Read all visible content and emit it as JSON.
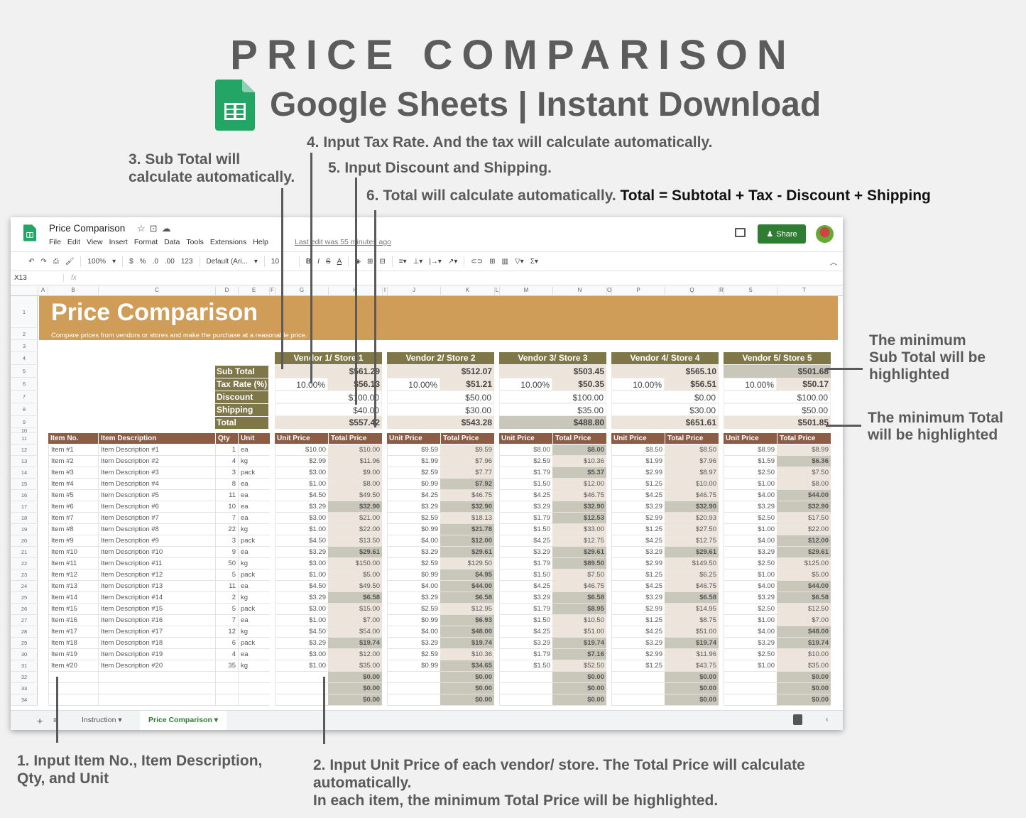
{
  "hero": {
    "title": "PRICE COMPARISON",
    "subtitle": "Google Sheets | Instant Download"
  },
  "annotations": {
    "a1": "1. Input Item No., Item Description,",
    "a1b": "Qty, and Unit",
    "a2": "2. Input Unit Price of each vendor/ store. The Total Price will calculate",
    "a2b": "automatically.",
    "a2c": "In each item, the minimum Total Price will be highlighted.",
    "a3": "3. Sub Total will",
    "a3b": "calculate automatically.",
    "a4": "4. Input Tax Rate. And the tax will calculate automatically.",
    "a5": "5. Input Discount and Shipping.",
    "a6": "6. Total will calculate automatically.",
    "a6b": "Total = Subtotal + Tax - Discount + Shipping",
    "min_sub1": "The minimum",
    "min_sub2": "Sub Total will be",
    "min_sub3": "highlighted",
    "min_tot1": "The minimum Total",
    "min_tot2": "will be highlighted"
  },
  "window": {
    "doc_title": "Price Comparison",
    "menus": [
      "File",
      "Edit",
      "View",
      "Insert",
      "Format",
      "Data",
      "Tools",
      "Extensions",
      "Help"
    ],
    "last_edit": "Last edit was 55 minutes ago",
    "share": "Share",
    "toolbar": {
      "zoom": "100%",
      "currency": "$",
      "percent": "%",
      "dec_less": ".0",
      "dec_more": ".00",
      "format": "123",
      "font": "Default (Ari...",
      "size": "10"
    },
    "name_box": "X13",
    "fx": "fx",
    "columns": [
      "A",
      "B",
      "C",
      "D",
      "E",
      "F",
      "G",
      "H",
      "I",
      "J",
      "K",
      "L",
      "M",
      "N",
      "O",
      "P",
      "Q",
      "R",
      "S",
      "T"
    ],
    "tabs": [
      "Instruction",
      "Price Comparison"
    ]
  },
  "sheet": {
    "title": "Price Comparison",
    "subtitle": "Compare prices from vendors or stores and make the purchase at a reasonable price.",
    "summary_labels": [
      "Sub Total",
      "Tax Rate (%)",
      "Discount",
      "Shipping",
      "Total"
    ],
    "vendors": [
      {
        "name": "Vendor 1/ Store 1",
        "subtotal": "$561.29",
        "tax_rate": "10.00%",
        "tax": "$56.13",
        "discount": "$100.00",
        "shipping": "$40.00",
        "total": "$557.42"
      },
      {
        "name": "Vendor 2/ Store 2",
        "subtotal": "$512.07",
        "tax_rate": "10.00%",
        "tax": "$51.21",
        "discount": "$50.00",
        "shipping": "$30.00",
        "total": "$543.28"
      },
      {
        "name": "Vendor 3/ Store 3",
        "subtotal": "$503.45",
        "tax_rate": "10.00%",
        "tax": "$50.35",
        "discount": "$100.00",
        "shipping": "$35.00",
        "total": "$488.80"
      },
      {
        "name": "Vendor 4/ Store 4",
        "subtotal": "$565.10",
        "tax_rate": "10.00%",
        "tax": "$56.51",
        "discount": "$0.00",
        "shipping": "$30.00",
        "total": "$651.61"
      },
      {
        "name": "Vendor 5/ Store 5",
        "subtotal": "$501.68",
        "tax_rate": "10.00%",
        "tax": "$50.17",
        "discount": "$100.00",
        "shipping": "$50.00",
        "total": "$501.85"
      }
    ],
    "item_headers": [
      "Item No.",
      "Item Description",
      "Qty",
      "Unit"
    ],
    "price_headers": [
      "Unit Price",
      "Total Price"
    ],
    "items": [
      [
        "Item #1",
        "Item Description #1",
        "1",
        "ea"
      ],
      [
        "Item #2",
        "Item Description #2",
        "4",
        "kg"
      ],
      [
        "Item #3",
        "Item Description #3",
        "3",
        "pack"
      ],
      [
        "Item #4",
        "Item Description #4",
        "8",
        "ea"
      ],
      [
        "Item #5",
        "Item Description #5",
        "11",
        "ea"
      ],
      [
        "Item #6",
        "Item Description #6",
        "10",
        "ea"
      ],
      [
        "Item #7",
        "Item Description #7",
        "7",
        "ea"
      ],
      [
        "Item #8",
        "Item Description #8",
        "22",
        "kg"
      ],
      [
        "Item #9",
        "Item Description #9",
        "3",
        "pack"
      ],
      [
        "Item #10",
        "Item Description #10",
        "9",
        "ea"
      ],
      [
        "Item #11",
        "Item Description #11",
        "50",
        "kg"
      ],
      [
        "Item #12",
        "Item Description #12",
        "5",
        "pack"
      ],
      [
        "Item #13",
        "Item Description #13",
        "11",
        "ea"
      ],
      [
        "Item #14",
        "Item Description #14",
        "2",
        "kg"
      ],
      [
        "Item #15",
        "Item Description #15",
        "5",
        "pack"
      ],
      [
        "Item #16",
        "Item Description #16",
        "7",
        "ea"
      ],
      [
        "Item #17",
        "Item Description #17",
        "12",
        "kg"
      ],
      [
        "Item #18",
        "Item Description #18",
        "6",
        "pack"
      ],
      [
        "Item #19",
        "Item Description #19",
        "4",
        "ea"
      ],
      [
        "Item #20",
        "Item Description #20",
        "35",
        "kg"
      ]
    ],
    "prices": [
      [
        [
          "$10.00",
          "$10.00",
          0
        ],
        [
          "$2.99",
          "$11.96",
          0
        ],
        [
          "$3.00",
          "$9.00",
          0
        ],
        [
          "$1.00",
          "$8.00",
          0
        ],
        [
          "$4.50",
          "$49.50",
          0
        ],
        [
          "$3.29",
          "$32.90",
          1
        ],
        [
          "$3.00",
          "$21.00",
          0
        ],
        [
          "$1.00",
          "$22.00",
          0
        ],
        [
          "$4.50",
          "$13.50",
          0
        ],
        [
          "$3.29",
          "$29.61",
          1
        ],
        [
          "$3.00",
          "$150.00",
          0
        ],
        [
          "$1.00",
          "$5.00",
          0
        ],
        [
          "$4.50",
          "$49.50",
          0
        ],
        [
          "$3.29",
          "$6.58",
          1
        ],
        [
          "$3.00",
          "$15.00",
          0
        ],
        [
          "$1.00",
          "$7.00",
          0
        ],
        [
          "$4.50",
          "$54.00",
          0
        ],
        [
          "$3.29",
          "$19.74",
          1
        ],
        [
          "$3.00",
          "$12.00",
          0
        ],
        [
          "$1.00",
          "$35.00",
          0
        ],
        [
          "",
          "$0.00",
          1
        ],
        [
          "",
          "$0.00",
          1
        ],
        [
          "",
          "$0.00",
          1
        ]
      ],
      [
        [
          "$9.59",
          "$9.59",
          0
        ],
        [
          "$1.99",
          "$7.96",
          0
        ],
        [
          "$2.59",
          "$7.77",
          0
        ],
        [
          "$0.99",
          "$7.92",
          1
        ],
        [
          "$4.25",
          "$46.75",
          0
        ],
        [
          "$3.29",
          "$32.90",
          1
        ],
        [
          "$2.59",
          "$18.13",
          0
        ],
        [
          "$0.99",
          "$21.78",
          1
        ],
        [
          "$4.00",
          "$12.00",
          1
        ],
        [
          "$3.29",
          "$29.61",
          1
        ],
        [
          "$2.59",
          "$129.50",
          0
        ],
        [
          "$0.99",
          "$4.95",
          1
        ],
        [
          "$4.00",
          "$44.00",
          1
        ],
        [
          "$3.29",
          "$6.58",
          1
        ],
        [
          "$2.59",
          "$12.95",
          0
        ],
        [
          "$0.99",
          "$6.93",
          1
        ],
        [
          "$4.00",
          "$48.00",
          1
        ],
        [
          "$3.29",
          "$19.74",
          1
        ],
        [
          "$2.59",
          "$10.36",
          0
        ],
        [
          "$0.99",
          "$34.65",
          1
        ],
        [
          "",
          "$0.00",
          1
        ],
        [
          "",
          "$0.00",
          1
        ],
        [
          "",
          "$0.00",
          1
        ]
      ],
      [
        [
          "$8.00",
          "$8.00",
          1
        ],
        [
          "$2.59",
          "$10.36",
          0
        ],
        [
          "$1.79",
          "$5.37",
          1
        ],
        [
          "$1.50",
          "$12.00",
          0
        ],
        [
          "$4.25",
          "$46.75",
          0
        ],
        [
          "$3.29",
          "$32.90",
          1
        ],
        [
          "$1.79",
          "$12.53",
          1
        ],
        [
          "$1.50",
          "$33.00",
          0
        ],
        [
          "$4.25",
          "$12.75",
          0
        ],
        [
          "$3.29",
          "$29.61",
          1
        ],
        [
          "$1.79",
          "$89.50",
          1
        ],
        [
          "$1.50",
          "$7.50",
          0
        ],
        [
          "$4.25",
          "$46.75",
          0
        ],
        [
          "$3.29",
          "$6.58",
          1
        ],
        [
          "$1.79",
          "$8.95",
          1
        ],
        [
          "$1.50",
          "$10.50",
          0
        ],
        [
          "$4.25",
          "$51.00",
          0
        ],
        [
          "$3.29",
          "$19.74",
          1
        ],
        [
          "$1.79",
          "$7.16",
          1
        ],
        [
          "$1.50",
          "$52.50",
          0
        ],
        [
          "",
          "$0.00",
          1
        ],
        [
          "",
          "$0.00",
          1
        ],
        [
          "",
          "$0.00",
          1
        ]
      ],
      [
        [
          "$8.50",
          "$8.50",
          0
        ],
        [
          "$1.99",
          "$7.96",
          0
        ],
        [
          "$2.99",
          "$8.97",
          0
        ],
        [
          "$1.25",
          "$10.00",
          0
        ],
        [
          "$4.25",
          "$46.75",
          0
        ],
        [
          "$3.29",
          "$32.90",
          1
        ],
        [
          "$2.99",
          "$20.93",
          0
        ],
        [
          "$1.25",
          "$27.50",
          0
        ],
        [
          "$4.25",
          "$12.75",
          0
        ],
        [
          "$3.29",
          "$29.61",
          1
        ],
        [
          "$2.99",
          "$149.50",
          0
        ],
        [
          "$1.25",
          "$6.25",
          0
        ],
        [
          "$4.25",
          "$46.75",
          0
        ],
        [
          "$3.29",
          "$6.58",
          1
        ],
        [
          "$2.99",
          "$14.95",
          0
        ],
        [
          "$1.25",
          "$8.75",
          0
        ],
        [
          "$4.25",
          "$51.00",
          0
        ],
        [
          "$3.29",
          "$19.74",
          1
        ],
        [
          "$2.99",
          "$11.96",
          0
        ],
        [
          "$1.25",
          "$43.75",
          0
        ],
        [
          "",
          "$0.00",
          1
        ],
        [
          "",
          "$0.00",
          1
        ],
        [
          "",
          "$0.00",
          1
        ]
      ],
      [
        [
          "$8.99",
          "$8.99",
          0
        ],
        [
          "$1.59",
          "$6.36",
          1
        ],
        [
          "$2.50",
          "$7.50",
          0
        ],
        [
          "$1.00",
          "$8.00",
          0
        ],
        [
          "$4.00",
          "$44.00",
          1
        ],
        [
          "$3.29",
          "$32.90",
          1
        ],
        [
          "$2.50",
          "$17.50",
          0
        ],
        [
          "$1.00",
          "$22.00",
          0
        ],
        [
          "$4.00",
          "$12.00",
          1
        ],
        [
          "$3.29",
          "$29.61",
          1
        ],
        [
          "$2.50",
          "$125.00",
          0
        ],
        [
          "$1.00",
          "$5.00",
          0
        ],
        [
          "$4.00",
          "$44.00",
          1
        ],
        [
          "$3.29",
          "$6.58",
          1
        ],
        [
          "$2.50",
          "$12.50",
          0
        ],
        [
          "$1.00",
          "$7.00",
          0
        ],
        [
          "$4.00",
          "$48.00",
          1
        ],
        [
          "$3.29",
          "$19.74",
          1
        ],
        [
          "$2.50",
          "$10.00",
          0
        ],
        [
          "$1.00",
          "$35.00",
          0
        ],
        [
          "",
          "$0.00",
          1
        ],
        [
          "",
          "$0.00",
          1
        ],
        [
          "",
          "$0.00",
          1
        ]
      ]
    ],
    "min_subtotal_vendor": 4,
    "min_total_vendor": 2
  },
  "colors": {
    "banner": "#cf9d57",
    "vendor_header": "#7f7748",
    "table_header": "#8e5b44",
    "beige": "#ede5dc",
    "highlight": "#c9c6ba",
    "share": "#2f7d32"
  }
}
